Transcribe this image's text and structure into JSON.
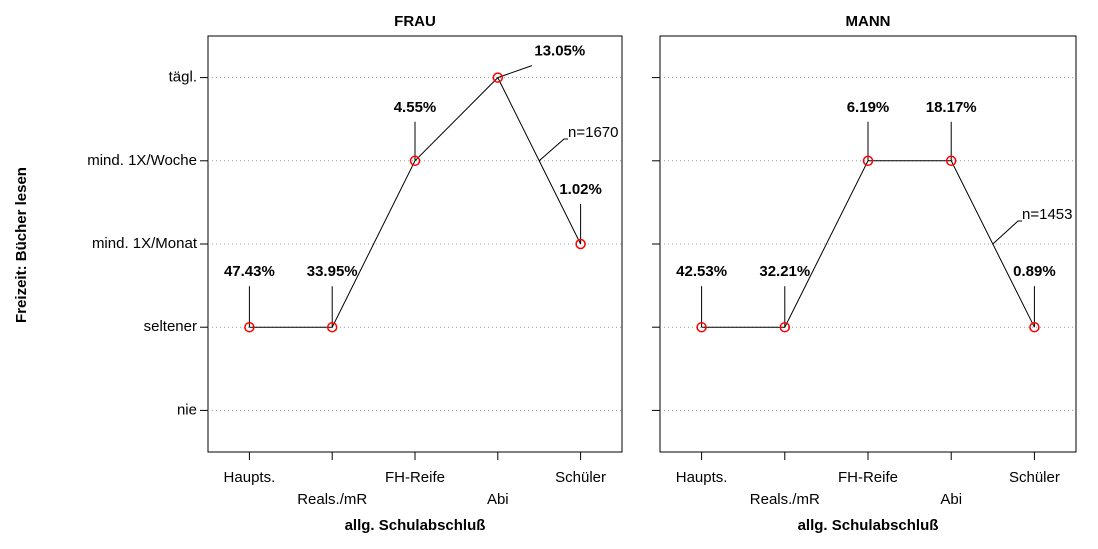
{
  "chart_data": [
    {
      "type": "line",
      "title": "FRAU",
      "y_label": "Freizeit: Bücher lesen",
      "x_label": "allg. Schulabschluß",
      "categories": [
        "Haupts.",
        "Reals./mR",
        "FH-Reife",
        "Abi",
        "Schüler"
      ],
      "xlim": [
        0.5,
        5.5
      ],
      "ylim": [
        0.5,
        5.5
      ],
      "yticks": [
        {
          "value": 1,
          "label": "nie"
        },
        {
          "value": 2,
          "label": "seltener"
        },
        {
          "value": 3,
          "label": "mind. 1X/Monat"
        },
        {
          "value": 4,
          "label": "mind. 1X/Woche"
        },
        {
          "value": 5,
          "label": "tägl."
        }
      ],
      "grid": true,
      "color": "#000000",
      "marker_color": "#ff0000",
      "values": [
        2,
        2,
        4,
        5,
        3
      ],
      "annotations": [
        "47.43%",
        "33.95%",
        "4.55%",
        "13.05%",
        "1.02%"
      ],
      "n_label": "n=1670"
    },
    {
      "type": "line",
      "title": "MANN",
      "x_label": "allg. Schulabschluß",
      "categories": [
        "Haupts.",
        "Reals./mR",
        "FH-Reife",
        "Abi",
        "Schüler"
      ],
      "xlim": [
        0.5,
        5.5
      ],
      "ylim": [
        0.5,
        5.5
      ],
      "yticks": [
        1,
        2,
        3,
        4,
        5
      ],
      "grid": true,
      "color": "#000000",
      "marker_color": "#ff0000",
      "values": [
        2,
        2,
        4,
        4,
        2
      ],
      "annotations": [
        "42.53%",
        "32.21%",
        "6.19%",
        "18.17%",
        "0.89%"
      ],
      "n_label": "n=1453"
    }
  ]
}
